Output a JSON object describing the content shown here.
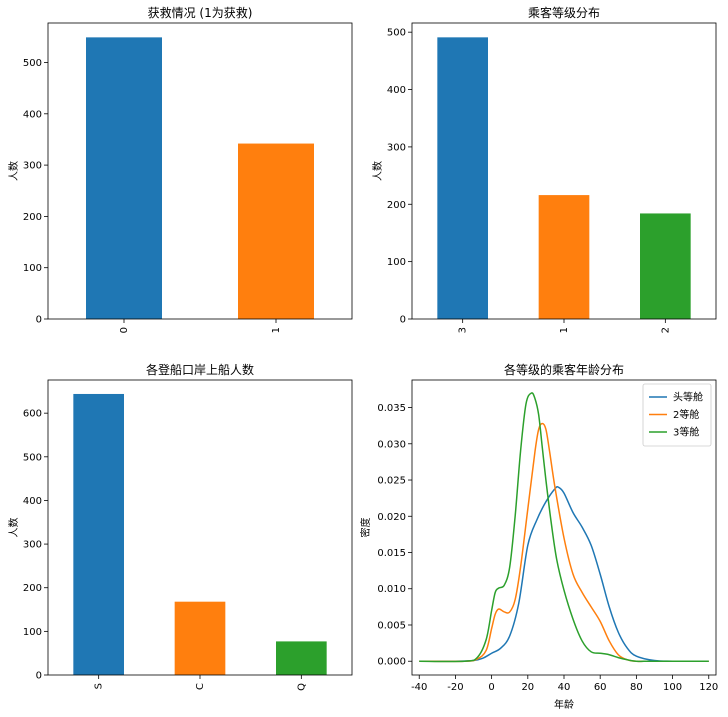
{
  "chart_data": [
    {
      "type": "bar",
      "title": "获救情况 (1为获救)",
      "xlabel": "",
      "ylabel": "人数",
      "categories": [
        "0",
        "1"
      ],
      "values": [
        549,
        342
      ],
      "colors": [
        "#1f77b4",
        "#ff7f0e"
      ],
      "ylim": [
        0,
        577
      ],
      "yticks": [
        0,
        100,
        200,
        300,
        400,
        500
      ],
      "x_tick_rotation": 90,
      "grid": false
    },
    {
      "type": "bar",
      "title": "乘客等级分布",
      "xlabel": "",
      "ylabel": "人数",
      "categories": [
        "3",
        "1",
        "2"
      ],
      "values": [
        491,
        216,
        184
      ],
      "colors": [
        "#1f77b4",
        "#ff7f0e",
        "#2ca02c"
      ],
      "ylim": [
        0,
        516
      ],
      "yticks": [
        0,
        100,
        200,
        300,
        400,
        500
      ],
      "x_tick_rotation": 90,
      "grid": false
    },
    {
      "type": "bar",
      "title": "各登船口岸上船人数",
      "xlabel": "",
      "ylabel": "人数",
      "categories": [
        "S",
        "C",
        "Q"
      ],
      "values": [
        644,
        168,
        77
      ],
      "colors": [
        "#1f77b4",
        "#ff7f0e",
        "#2ca02c"
      ],
      "ylim": [
        0,
        676
      ],
      "yticks": [
        0,
        100,
        200,
        300,
        400,
        500,
        600
      ],
      "x_tick_rotation": 90,
      "grid": false
    },
    {
      "type": "line",
      "title": "各等级的乘客年龄分布",
      "xlabel": "年龄",
      "ylabel": "密度",
      "xlim": [
        -44,
        124
      ],
      "ylim": [
        -0.0019,
        0.0388
      ],
      "xticks": [
        -40,
        -20,
        0,
        20,
        40,
        60,
        80,
        100,
        120
      ],
      "yticks": [
        0.0,
        0.005,
        0.01,
        0.015,
        0.02,
        0.025,
        0.03,
        0.035
      ],
      "ytick_labels": [
        "0.000",
        "0.005",
        "0.010",
        "0.015",
        "0.020",
        "0.025",
        "0.030",
        "0.035"
      ],
      "legend_position": "top-right",
      "grid": false,
      "series": [
        {
          "name": "头等舱",
          "color": "#1f77b4",
          "x": [
            -40,
            -20,
            -10,
            -5,
            0,
            5,
            10,
            15,
            20,
            25,
            30,
            35,
            37,
            40,
            45,
            50,
            55,
            60,
            65,
            70,
            75,
            80,
            90,
            100,
            120
          ],
          "y": [
            0.0,
            0.0,
            0.0001,
            0.0004,
            0.0011,
            0.0018,
            0.0035,
            0.008,
            0.016,
            0.0195,
            0.022,
            0.0238,
            0.024,
            0.0232,
            0.0205,
            0.0185,
            0.016,
            0.012,
            0.0075,
            0.004,
            0.0018,
            0.0007,
            0.0001,
            0.0,
            0.0
          ]
        },
        {
          "name": "2等舱",
          "color": "#ff7f0e",
          "x": [
            -40,
            -15,
            -8,
            -3,
            0,
            2,
            4,
            7,
            10,
            13,
            16,
            20,
            24,
            26,
            28,
            30,
            32,
            35,
            40,
            45,
            50,
            55,
            60,
            65,
            70,
            75,
            80,
            90,
            120
          ],
          "y": [
            0.0,
            0.0,
            0.0003,
            0.0015,
            0.0045,
            0.0065,
            0.0072,
            0.0068,
            0.0068,
            0.0085,
            0.013,
            0.021,
            0.029,
            0.032,
            0.0328,
            0.032,
            0.029,
            0.024,
            0.017,
            0.012,
            0.0095,
            0.0075,
            0.0055,
            0.0028,
            0.0009,
            0.0002,
            0.0,
            0.0,
            0.0
          ]
        },
        {
          "name": "3等舱",
          "color": "#2ca02c",
          "x": [
            -40,
            -15,
            -8,
            -3,
            0,
            2,
            4,
            7,
            10,
            13,
            16,
            19,
            22,
            24,
            26,
            28,
            30,
            33,
            36,
            40,
            45,
            50,
            55,
            60,
            65,
            70,
            75,
            80,
            90,
            120
          ],
          "y": [
            0.0,
            0.0,
            0.0005,
            0.003,
            0.007,
            0.0095,
            0.0101,
            0.0105,
            0.013,
            0.02,
            0.029,
            0.0355,
            0.037,
            0.0362,
            0.034,
            0.0295,
            0.025,
            0.019,
            0.014,
            0.0098,
            0.0058,
            0.0028,
            0.0013,
            0.0011,
            0.0009,
            0.0005,
            0.0002,
            0.0,
            0.0,
            0.0
          ]
        }
      ]
    }
  ]
}
